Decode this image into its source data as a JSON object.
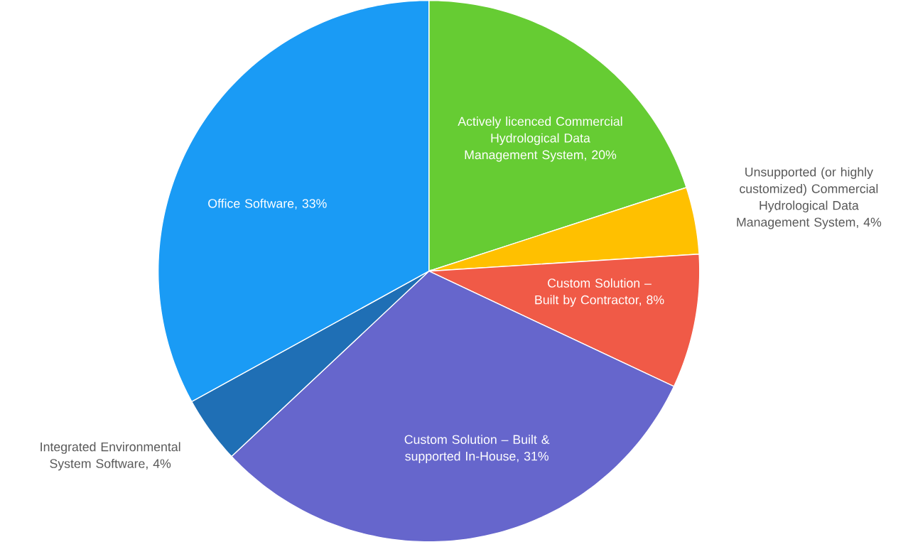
{
  "chart_data": {
    "type": "pie",
    "categories": [
      "Actively licenced Commercial Hydrological Data Management System, 20%",
      "Unsupported (or highly customized) Commercial Hydrological Data Management System, 4%",
      "Custom Solution – Built by Contractor, 8%",
      "Custom Solution – Built & supported In-House, 31%",
      "Integrated Environmental System Software, 4%",
      "Office Software, 33%"
    ],
    "values": [
      20,
      4,
      8,
      31,
      4,
      33
    ],
    "colors": [
      "#66cc33",
      "#ffc000",
      "#f05a47",
      "#6666cc",
      "#1f6fb5",
      "#1a9bf5"
    ]
  }
}
